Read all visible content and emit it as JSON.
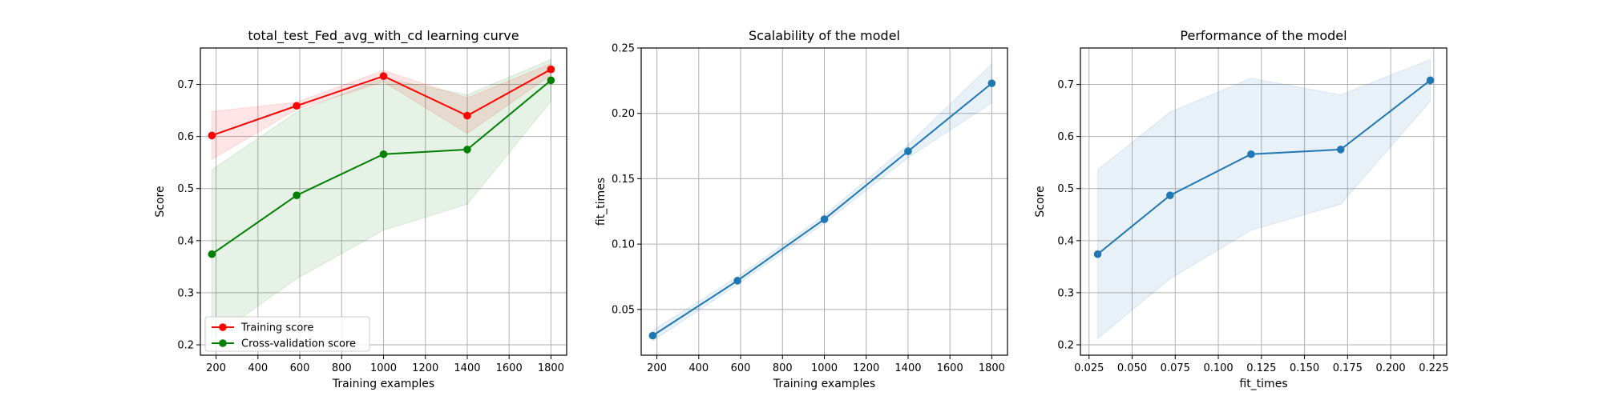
{
  "chart_data": [
    {
      "type": "line",
      "title": "total_test_Fed_avg_with_cd learning curve",
      "xlabel": "Training examples",
      "ylabel": "Score",
      "xlim": [
        125,
        1875
      ],
      "ylim": [
        0.18,
        0.77
      ],
      "xticks": [
        200,
        400,
        600,
        800,
        1000,
        1200,
        1400,
        1600,
        1800
      ],
      "yticks": [
        0.2,
        0.3,
        0.4,
        0.5,
        0.6,
        0.7
      ],
      "ytick_labels": [
        "0.2",
        "0.3",
        "0.4",
        "0.5",
        "0.6",
        "0.7"
      ],
      "grid": true,
      "legend": "lower-left",
      "x": [
        180,
        585,
        1000,
        1400,
        1800
      ],
      "series": [
        {
          "name": "Training score",
          "color": "#ff0000",
          "values": [
            0.602,
            0.659,
            0.716,
            0.64,
            0.729
          ],
          "band_low": [
            0.556,
            0.652,
            0.705,
            0.606,
            0.718
          ],
          "band_high": [
            0.648,
            0.666,
            0.727,
            0.674,
            0.74
          ]
        },
        {
          "name": "Cross-validation score",
          "color": "#008000",
          "values": [
            0.374,
            0.487,
            0.566,
            0.575,
            0.708
          ],
          "band_low": [
            0.212,
            0.327,
            0.42,
            0.47,
            0.668
          ],
          "band_high": [
            0.536,
            0.647,
            0.712,
            0.68,
            0.748
          ]
        }
      ]
    },
    {
      "type": "line",
      "title": "Scalability of the model",
      "xlabel": "Training examples",
      "ylabel": "fit_times",
      "xlim": [
        125,
        1875
      ],
      "ylim": [
        0.015,
        0.25
      ],
      "xticks": [
        200,
        400,
        600,
        800,
        1000,
        1200,
        1400,
        1600,
        1800
      ],
      "yticks": [
        0.05,
        0.1,
        0.15,
        0.2,
        0.25
      ],
      "ytick_labels": [
        "0.05",
        "0.10",
        "0.15",
        "0.20",
        "0.25"
      ],
      "grid": true,
      "x": [
        180,
        585,
        1000,
        1400,
        1800
      ],
      "series": [
        {
          "color": "#1f77b4",
          "values": [
            0.03,
            0.072,
            0.119,
            0.171,
            0.223
          ],
          "band_low": [
            0.026,
            0.069,
            0.116,
            0.166,
            0.208
          ],
          "band_high": [
            0.034,
            0.075,
            0.122,
            0.176,
            0.238
          ]
        }
      ]
    },
    {
      "type": "line",
      "title": "Performance of the model",
      "xlabel": "fit_times",
      "ylabel": "Score",
      "xlim": [
        0.02,
        0.2325
      ],
      "ylim": [
        0.18,
        0.77
      ],
      "xticks": [
        0.025,
        0.05,
        0.075,
        0.1,
        0.125,
        0.15,
        0.175,
        0.2,
        0.225
      ],
      "xtick_labels": [
        "0.025",
        "0.050",
        "0.075",
        "0.100",
        "0.125",
        "0.150",
        "0.175",
        "0.200",
        "0.225"
      ],
      "yticks": [
        0.2,
        0.3,
        0.4,
        0.5,
        0.6,
        0.7
      ],
      "ytick_labels": [
        "0.2",
        "0.3",
        "0.4",
        "0.5",
        "0.6",
        "0.7"
      ],
      "grid": true,
      "x": [
        0.03,
        0.072,
        0.119,
        0.171,
        0.223
      ],
      "series": [
        {
          "color": "#1f77b4",
          "values": [
            0.374,
            0.487,
            0.566,
            0.575,
            0.708
          ],
          "band_low": [
            0.212,
            0.327,
            0.42,
            0.47,
            0.668
          ],
          "band_high": [
            0.536,
            0.647,
            0.712,
            0.68,
            0.748
          ]
        }
      ]
    }
  ]
}
